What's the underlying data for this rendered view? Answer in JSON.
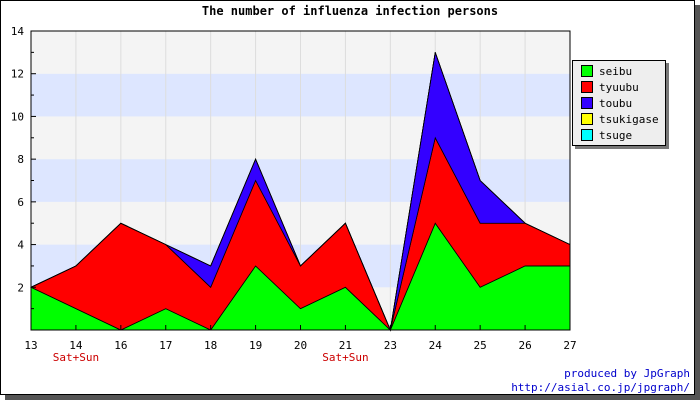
{
  "chart_data": {
    "type": "area",
    "stacked": true,
    "title": "The number of influenza infection persons",
    "x": [
      13,
      14,
      16,
      17,
      18,
      19,
      20,
      21,
      23,
      24,
      25,
      26,
      27
    ],
    "x_tick_labels": [
      "13",
      "14",
      "16",
      "17",
      "18",
      "19",
      "20",
      "21",
      "23",
      "24",
      "25",
      "26",
      "27"
    ],
    "x_annotations": [
      {
        "x": 14,
        "text": "Sat+Sun",
        "color": "#cc0000"
      },
      {
        "x": 21,
        "text": "Sat+Sun",
        "color": "#cc0000"
      }
    ],
    "y_ticks": [
      2,
      4,
      6,
      8,
      10,
      12,
      14
    ],
    "ylim": [
      0,
      14
    ],
    "grid": true,
    "band_colors": [
      "#f4f4f4",
      "#dde6ff"
    ],
    "legend_position": "right",
    "series": [
      {
        "name": "seibu",
        "color": "#00ff00",
        "values": [
          2,
          1,
          0,
          1,
          0,
          3,
          1,
          2,
          0,
          5,
          2,
          3,
          3
        ]
      },
      {
        "name": "tyuubu",
        "color": "#ff0000",
        "values": [
          0,
          2,
          5,
          3,
          2,
          4,
          2,
          3,
          0,
          4,
          3,
          2,
          1
        ]
      },
      {
        "name": "toubu",
        "color": "#3300ff",
        "values": [
          0,
          0,
          0,
          0,
          1,
          1,
          0,
          0,
          0,
          4,
          2,
          0,
          0
        ]
      },
      {
        "name": "tsukigase",
        "color": "#ffff00",
        "values": [
          0,
          0,
          0,
          0,
          0,
          0,
          0,
          0,
          0,
          0,
          0,
          0,
          0
        ]
      },
      {
        "name": "tsuge",
        "color": "#00ffff",
        "values": [
          0,
          0,
          0,
          0,
          0,
          0,
          0,
          0,
          0,
          0,
          0,
          0,
          0
        ]
      }
    ]
  },
  "footer": {
    "line1": "produced by JpGraph",
    "line2": "http://asial.co.jp/jpgraph/"
  }
}
